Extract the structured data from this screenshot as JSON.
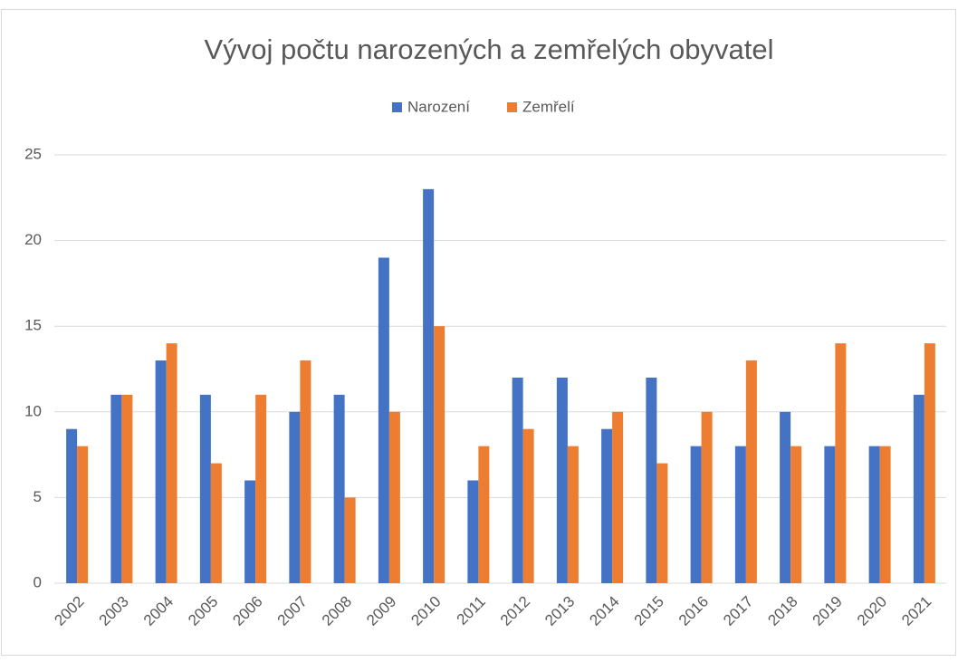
{
  "chart_data": {
    "type": "bar",
    "title": "Vývoj počtu narozených a zemřelých obyvatel",
    "categories": [
      "2002",
      "2003",
      "2004",
      "2005",
      "2006",
      "2007",
      "2008",
      "2009",
      "2010",
      "2011",
      "2012",
      "2013",
      "2014",
      "2015",
      "2016",
      "2017",
      "2018",
      "2019",
      "2020",
      "2021"
    ],
    "series": [
      {
        "name": "Narození",
        "color": "#4472c4",
        "values": [
          9,
          11,
          13,
          11,
          6,
          10,
          11,
          19,
          23,
          6,
          12,
          12,
          9,
          12,
          8,
          8,
          10,
          8,
          8,
          11
        ]
      },
      {
        "name": "Zemřelí",
        "color": "#ed7d31",
        "values": [
          8,
          11,
          14,
          7,
          11,
          13,
          5,
          10,
          15,
          8,
          9,
          8,
          10,
          7,
          10,
          13,
          8,
          14,
          8,
          14
        ]
      }
    ],
    "ylim": [
      0,
      25
    ],
    "yticks": [
      0,
      5,
      10,
      15,
      20,
      25
    ],
    "grid": true,
    "legend": "top"
  }
}
